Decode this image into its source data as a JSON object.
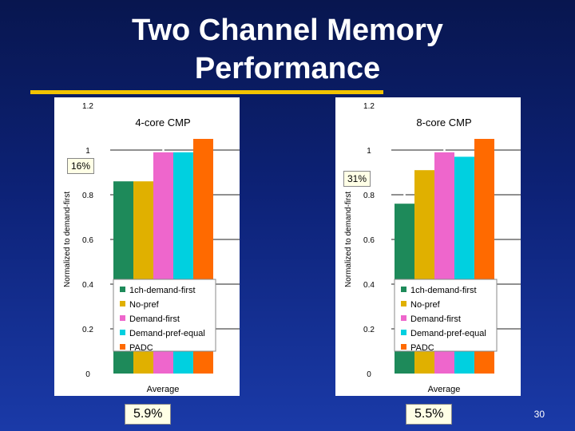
{
  "slide": {
    "title": "Two Channel Memory\nPerformance",
    "page_number": "30"
  },
  "colors": {
    "background": "#0d2277",
    "title_rule": "#f2c300",
    "plot_background": "#ffffff"
  },
  "chart_data": [
    {
      "type": "bar",
      "title": "4-core CMP",
      "ylabel": "Normalized to demand-first",
      "xlabel": "",
      "ylim": [
        0,
        1.2
      ],
      "yticks": [
        0,
        0.2,
        0.4,
        0.6,
        0.8,
        1,
        1.2
      ],
      "ytick_labels": [
        "0",
        "0.2",
        "0.4",
        "0.6",
        "0.8",
        "1",
        "1.2"
      ],
      "categories": [
        "Average"
      ],
      "grid": true,
      "legend_position": "bottom-right",
      "series": [
        {
          "name": "1ch-demand-first",
          "color": "#1e8a5a",
          "values": [
            0.86
          ]
        },
        {
          "name": "No-pref",
          "color": "#e0b000",
          "values": [
            0.86
          ]
        },
        {
          "name": "Demand-first",
          "color": "#ee66cc",
          "values": [
            0.99
          ]
        },
        {
          "name": "Demand-pref-equal",
          "color": "#00d0e0",
          "values": [
            0.99
          ]
        },
        {
          "name": "PADC",
          "color": "#ff6a00",
          "values": [
            1.05
          ]
        }
      ],
      "annotations": {
        "gap_label": "16%",
        "gain_label": "5.9%"
      }
    },
    {
      "type": "bar",
      "title": "8-core CMP",
      "ylabel": "Normalized to demand-first",
      "xlabel": "",
      "ylim": [
        0,
        1.2
      ],
      "yticks": [
        0,
        0.2,
        0.4,
        0.6,
        0.8,
        1,
        1.2
      ],
      "ytick_labels": [
        "0",
        "0.2",
        "0.4",
        "0.6",
        "0.8",
        "1",
        "1.2"
      ],
      "categories": [
        "Average"
      ],
      "grid": true,
      "legend_position": "bottom-right",
      "series": [
        {
          "name": "1ch-demand-first",
          "color": "#1e8a5a",
          "values": [
            0.76
          ]
        },
        {
          "name": "No-pref",
          "color": "#e0b000",
          "values": [
            0.91
          ]
        },
        {
          "name": "Demand-first",
          "color": "#ee66cc",
          "values": [
            0.99
          ]
        },
        {
          "name": "Demand-pref-equal",
          "color": "#00d0e0",
          "values": [
            0.97
          ]
        },
        {
          "name": "PADC",
          "color": "#ff6a00",
          "values": [
            1.05
          ]
        }
      ],
      "annotations": {
        "gap_label": "31%",
        "gain_label": "5.5%"
      }
    }
  ]
}
